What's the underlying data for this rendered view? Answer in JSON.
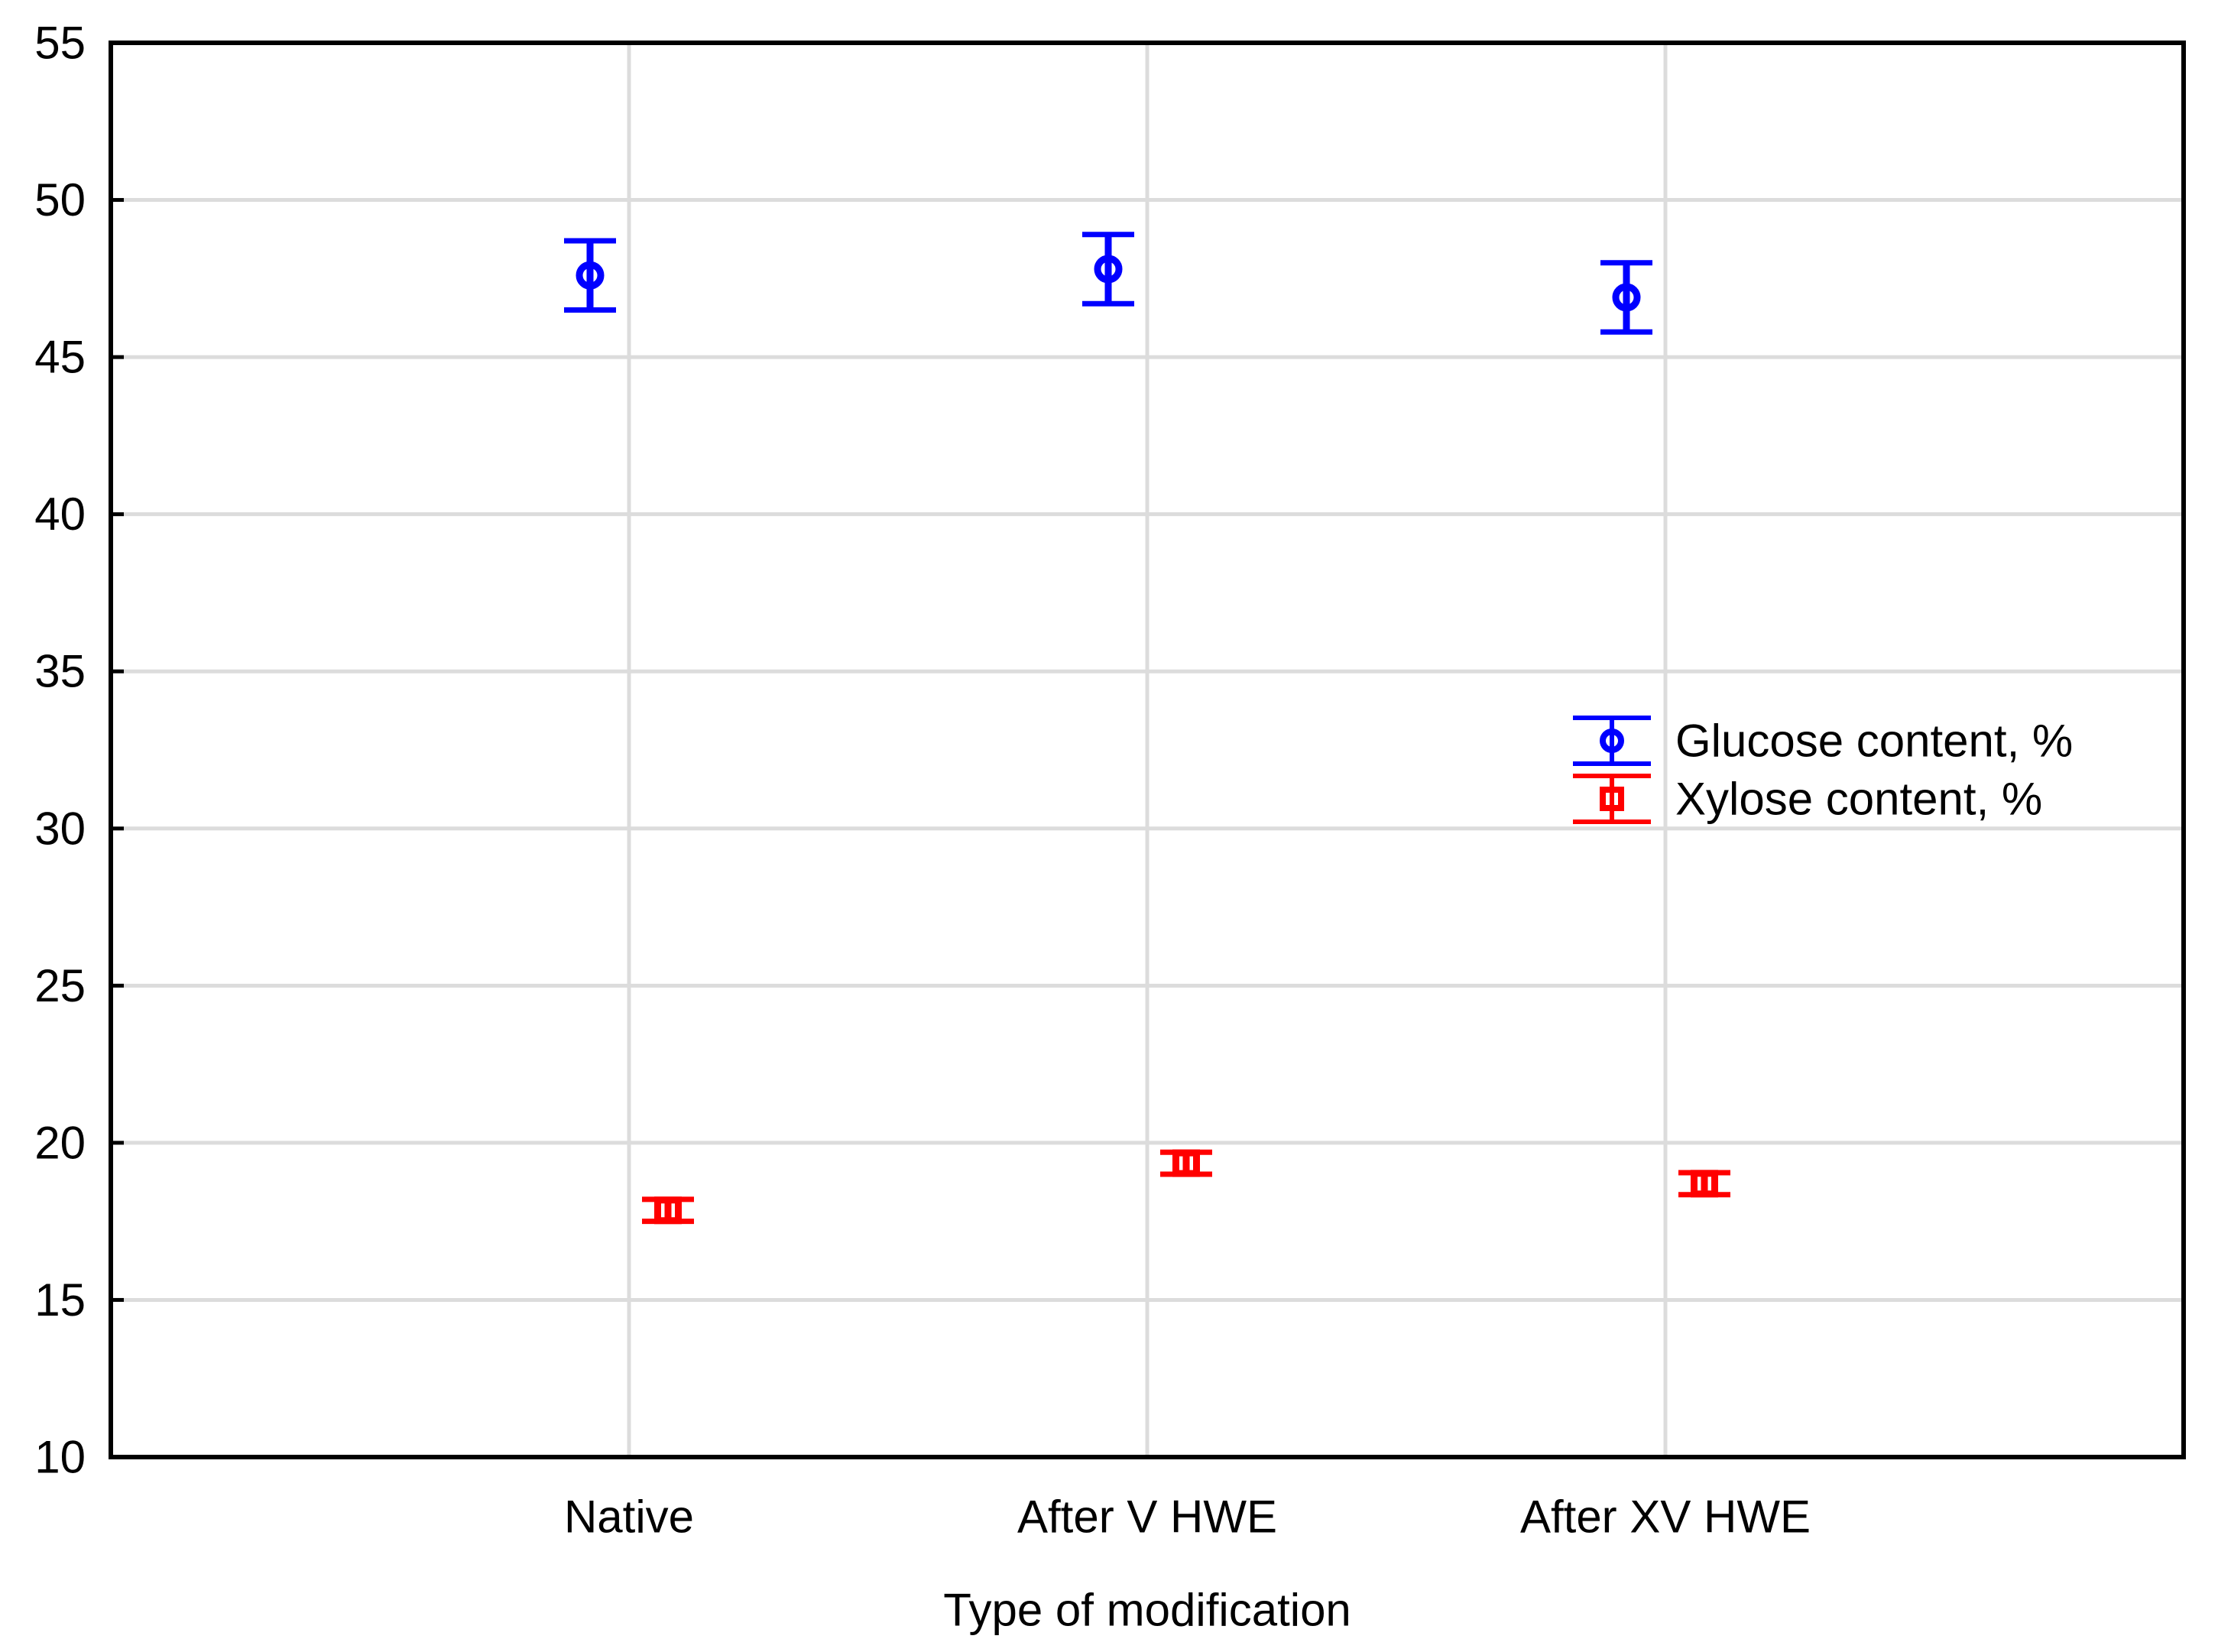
{
  "figure": {
    "background": "#ffffff"
  },
  "colors": {
    "axis": "#000000",
    "grid": "#dcdcdc",
    "glucose_series": "#0000ff",
    "xylose_series": "#ff0000",
    "text": "#000000"
  },
  "chart_data": {
    "type": "scatter",
    "title": "",
    "xlabel": "Type of modification",
    "ylabel": "",
    "ylim": [
      10,
      55
    ],
    "yticks": [
      10,
      15,
      20,
      25,
      30,
      35,
      40,
      45,
      50,
      55
    ],
    "grid": true,
    "categories": [
      "Native",
      "After V HWE",
      "After XV HWE"
    ],
    "series": [
      {
        "name": "Glucose content, %",
        "color": "#0000ff",
        "marker": "circle",
        "values": [
          47.6,
          47.8,
          46.9
        ],
        "errors": [
          1.1,
          1.1,
          1.1
        ]
      },
      {
        "name": "Xylose content, %",
        "color": "#ff0000",
        "marker": "square",
        "values": [
          17.85,
          19.35,
          18.7
        ],
        "errors": [
          0.35,
          0.35,
          0.35
        ]
      }
    ],
    "legend": {
      "position": "inside-right-middle",
      "entries": [
        "Glucose content, %",
        "Xylose content, %"
      ]
    }
  }
}
